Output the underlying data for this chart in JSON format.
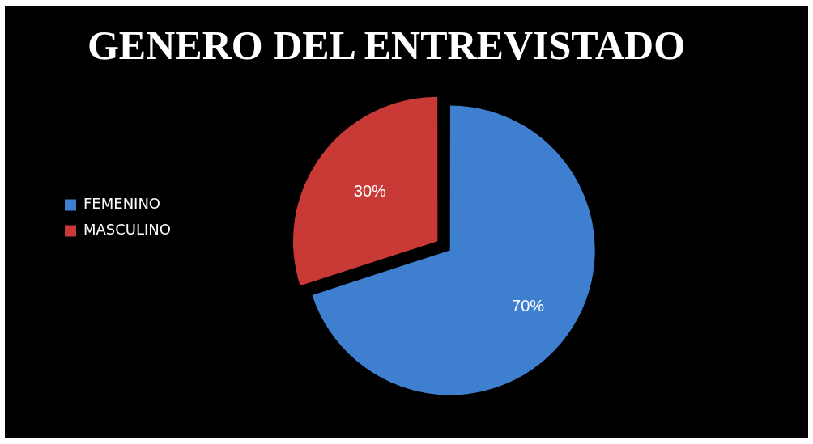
{
  "chart_data": {
    "type": "pie",
    "title": "GENERO DEL ENTREVISTADO",
    "categories": [
      "FEMENINO",
      "MASCULINO"
    ],
    "values": [
      70,
      30
    ],
    "colors": [
      "#3f7fd0",
      "#c93a36"
    ],
    "value_labels": [
      "70%",
      "30%"
    ],
    "legend": "left"
  }
}
